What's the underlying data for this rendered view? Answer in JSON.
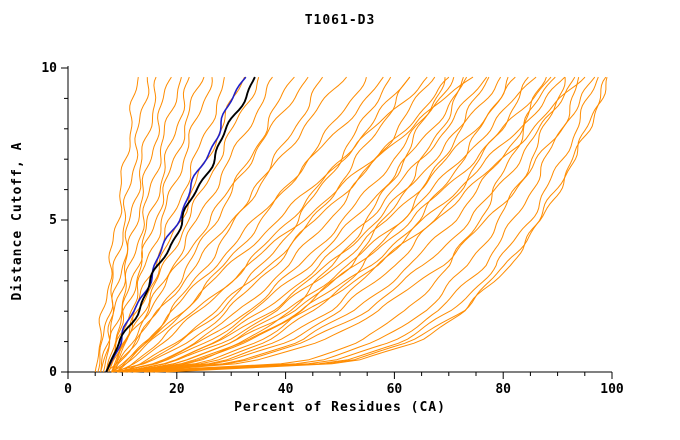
{
  "chart_data": {
    "type": "line",
    "title": "T1061-D3",
    "xlabel": "Percent of Residues (CA)",
    "ylabel": "Distance Cutoff, A",
    "xlim": [
      0,
      100
    ],
    "ylim": [
      0,
      10
    ],
    "xticks": [
      0,
      20,
      40,
      60,
      80,
      100
    ],
    "xminor_step": 5,
    "yticks": [
      0,
      5,
      10
    ],
    "yminor_step": 1,
    "grid": false,
    "legend": "none",
    "colors": {
      "orange": "#ff8c00",
      "blue": "#2020c8",
      "black": "#000000",
      "axis": "#000000",
      "background": "#ffffff"
    },
    "y_anchors": [
      0,
      0.3,
      1,
      2,
      3.5,
      5,
      6.5,
      8,
      9.7
    ],
    "series": [
      {
        "color": "orange",
        "x": [
          5,
          5.2,
          5.8,
          6.6,
          7.8,
          9,
          10.2,
          11.4,
          12.8
        ]
      },
      {
        "color": "orange",
        "x": [
          5.5,
          5.8,
          6.5,
          7.4,
          8.8,
          10.3,
          11.7,
          13.1,
          14.7
        ]
      },
      {
        "color": "orange",
        "x": [
          6,
          6.3,
          7.1,
          8.2,
          9.9,
          11.5,
          13.2,
          14.8,
          16.7
        ]
      },
      {
        "color": "orange",
        "x": [
          6,
          6.4,
          7.3,
          8.6,
          10.6,
          12.5,
          14.5,
          16.4,
          18.6
        ]
      },
      {
        "color": "orange",
        "x": [
          6.5,
          6.9,
          8,
          9.4,
          11.6,
          13.8,
          15.9,
          18.1,
          20.6
        ]
      },
      {
        "color": "orange",
        "x": [
          7,
          7.5,
          8.6,
          10.2,
          12.6,
          15,
          17.4,
          19.8,
          22.5
        ]
      },
      {
        "color": "orange",
        "x": [
          7,
          7.5,
          8.8,
          10.6,
          13.3,
          16,
          18.7,
          21.4,
          24.5
        ]
      },
      {
        "color": "orange",
        "x": [
          7.5,
          8.1,
          9.5,
          11.4,
          14.3,
          17.3,
          20.2,
          23.1,
          26.4
        ]
      },
      {
        "color": "orange",
        "x": [
          8,
          8.7,
          10.2,
          12.4,
          15.7,
          19,
          22.3,
          25.6,
          29.3
        ]
      },
      {
        "color": "orange",
        "x": [
          8,
          8.8,
          10.5,
          13,
          16.8,
          20.5,
          24.3,
          28,
          32.3
        ]
      },
      {
        "color": "orange",
        "x": [
          8,
          8.8,
          10.8,
          13.6,
          17.8,
          22,
          26.2,
          30.4,
          35.2
        ]
      },
      {
        "color": "orange",
        "x": [
          8.5,
          9.4,
          11.6,
          14.6,
          19.2,
          23.8,
          28.3,
          32.9,
          38.1
        ]
      },
      {
        "color": "orange",
        "x": [
          7,
          9.1,
          12.5,
          16.7,
          22.1,
          27.1,
          31.8,
          36.3,
          41.2
        ]
      },
      {
        "color": "orange",
        "x": [
          7,
          8.1,
          10.8,
          14.6,
          20.3,
          26,
          31.7,
          37.4,
          43.9
        ]
      },
      {
        "color": "orange",
        "x": [
          8,
          10.4,
          14.3,
          19,
          25.3,
          31,
          36.4,
          41.5,
          47
        ]
      },
      {
        "color": "orange",
        "x": [
          8,
          9.3,
          12.4,
          16.8,
          23.4,
          30,
          36.6,
          43.2,
          50.7
        ]
      },
      {
        "color": "orange",
        "x": [
          8,
          10.9,
          15.6,
          21.2,
          28.7,
          35.6,
          42,
          48.2,
          54.8
        ]
      },
      {
        "color": "orange",
        "x": [
          9,
          10.5,
          14.1,
          19.2,
          26.9,
          34.5,
          42.2,
          49.8,
          58.5
        ]
      },
      {
        "color": "orange",
        "x": [
          9,
          12.3,
          17.7,
          24.2,
          32.8,
          40.6,
          48,
          55,
          62.7
        ]
      },
      {
        "color": "orange",
        "x": [
          9,
          10.8,
          14.9,
          20.8,
          29.7,
          38.5,
          47.4,
          56.2,
          66.2
        ]
      },
      {
        "color": "orange",
        "x": [
          10,
          13.8,
          19.8,
          27.1,
          36.8,
          45.6,
          54,
          61.9,
          70.5
        ]
      },
      {
        "color": "orange",
        "x": [
          10,
          12,
          16.6,
          23.2,
          33.1,
          43,
          52.9,
          62.8,
          74
        ]
      },
      {
        "color": "orange",
        "x": [
          8,
          14.3,
          21.1,
          27.8,
          35.7,
          42.3,
          48.1,
          53.5,
          59.1
        ]
      },
      {
        "color": "orange",
        "x": [
          8,
          14.8,
          22.1,
          29.3,
          37.8,
          45,
          51.2,
          57,
          63
        ]
      },
      {
        "color": "orange",
        "x": [
          9,
          16.2,
          23.8,
          31.5,
          40.4,
          47.9,
          54.5,
          60.6,
          66.9
        ]
      },
      {
        "color": "orange",
        "x": [
          9,
          16.7,
          24.8,
          33,
          42.6,
          50.6,
          57.6,
          64.1,
          70.9
        ]
      },
      {
        "color": "orange",
        "x": [
          9,
          17.1,
          25.6,
          34.1,
          44.2,
          52.6,
          60,
          66.8,
          73.8
        ]
      },
      {
        "color": "orange",
        "x": [
          10,
          18.3,
          27.1,
          35.9,
          46.2,
          54.9,
          62.5,
          69.5,
          76.8
        ]
      },
      {
        "color": "orange",
        "x": [
          10,
          18.7,
          27.8,
          37.1,
          47.8,
          56.9,
          64.8,
          72.1,
          79.7
        ]
      },
      {
        "color": "orange",
        "x": [
          10,
          19,
          28.6,
          38.2,
          49.4,
          58.8,
          67.1,
          74.8,
          82.7
        ]
      },
      {
        "color": "orange",
        "x": [
          11,
          20.3,
          30.1,
          40,
          51.5,
          61.2,
          69.7,
          77.5,
          85.6
        ]
      },
      {
        "color": "orange",
        "x": [
          11,
          20.6,
          30.8,
          41.1,
          53.1,
          63.1,
          72,
          80.1,
          88.6
        ]
      },
      {
        "color": "orange",
        "x": [
          12,
          21.9,
          32.3,
          42.9,
          55.2,
          65.5,
          74.5,
          82.9,
          91.5
        ]
      },
      {
        "color": "orange",
        "x": [
          12,
          22.2,
          33.1,
          44,
          56.8,
          67.4,
          76.8,
          85.5,
          94.5
        ]
      },
      {
        "color": "orange",
        "x": [
          8,
          23.3,
          32.7,
          40.6,
          48.7,
          55,
          60.2,
          64.7,
          69.3
        ]
      },
      {
        "color": "orange",
        "x": [
          9,
          25,
          34.9,
          43.1,
          51.7,
          58.3,
          63.7,
          68.5,
          73.2
        ]
      },
      {
        "color": "orange",
        "x": [
          9,
          26,
          36.5,
          45.2,
          54.3,
          61.3,
          67.1,
          72.1,
          77.2
        ]
      },
      {
        "color": "orange",
        "x": [
          10,
          27.7,
          38.7,
          47.8,
          57.3,
          64.6,
          70.6,
          75.9,
          81.1
        ]
      },
      {
        "color": "orange",
        "x": [
          10,
          28.7,
          40.2,
          49.9,
          59.9,
          67.6,
          74,
          79.5,
          85.1
        ]
      },
      {
        "color": "orange",
        "x": [
          11,
          30.4,
          42.4,
          52.5,
          62.9,
          70.9,
          77.5,
          83.3,
          89.1
        ]
      },
      {
        "color": "orange",
        "x": [
          11,
          31.4,
          44,
          54.6,
          65.5,
          73.9,
          80.9,
          86.9,
          93
        ]
      },
      {
        "color": "orange",
        "x": [
          12,
          33.2,
          46.2,
          57.2,
          68.5,
          77.2,
          84.4,
          90.7,
          97
        ]
      },
      {
        "color": "orange",
        "x": [
          10,
          42.4,
          53.8,
          62.2,
          70,
          75.6,
          80,
          83.8,
          87.4
        ]
      },
      {
        "color": "orange",
        "x": [
          12,
          45.3,
          57,
          65.5,
          73.5,
          79.3,
          83.8,
          87.7,
          91.4
        ]
      },
      {
        "color": "orange",
        "x": [
          14,
          47.7,
          59.5,
          68.2,
          76.3,
          82.1,
          86.7,
          90.6,
          94.4
        ]
      },
      {
        "color": "orange",
        "x": [
          15,
          49.5,
          61.6,
          70.5,
          78.8,
          84.8,
          89.5,
          93.5,
          97.3
        ]
      },
      {
        "color": "orange",
        "x": [
          16,
          50.9,
          63.2,
          72.2,
          80.6,
          86.6,
          91.4,
          95.5,
          99.3
        ]
      },
      {
        "color": "orange",
        "x": [
          18,
          52.1,
          64.1,
          72.9,
          81.1,
          87,
          91.6,
          95.6,
          99.3
        ]
      },
      {
        "color": "blue",
        "x": [
          7,
          7.8,
          9.6,
          12.2,
          16.1,
          20,
          23.9,
          27.8,
          32.2
        ]
      },
      {
        "color": "black",
        "x": [
          7,
          7.8,
          9.8,
          12.6,
          16.8,
          21,
          25.2,
          29.4,
          34.2
        ]
      }
    ]
  }
}
